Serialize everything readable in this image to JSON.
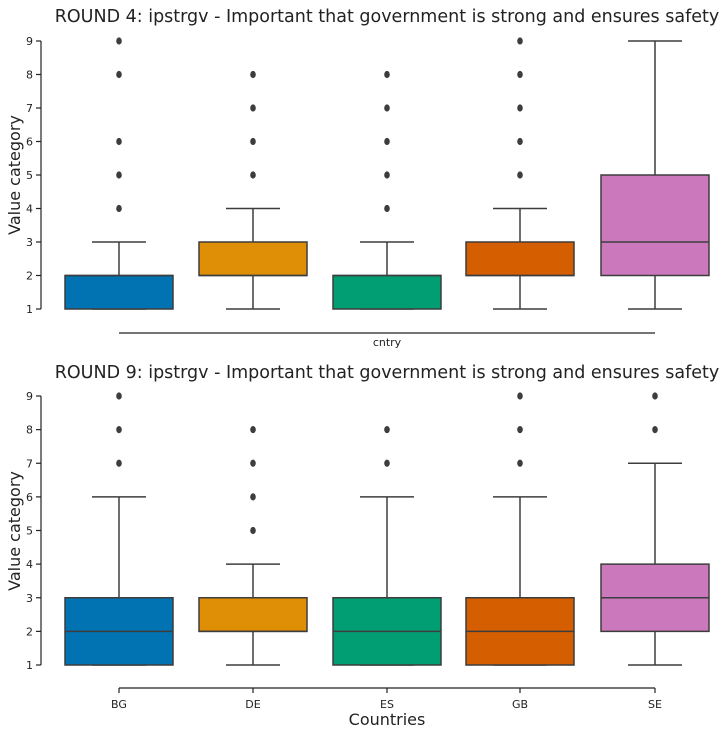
{
  "chart_data": [
    {
      "type": "box",
      "title": "ROUND 4: ipstrgv - Important that government is strong and ensures safety",
      "xlabel": "cntry",
      "ylabel": "Value category",
      "categories": [
        "BG",
        "DE",
        "ES",
        "GB",
        "SE"
      ],
      "x_tick_labels_shown": false,
      "ylim": [
        1,
        9
      ],
      "yticks": [
        1,
        2,
        3,
        4,
        5,
        6,
        7,
        8,
        9
      ],
      "grid": false,
      "colors": [
        "#0173b2",
        "#de8f05",
        "#029e73",
        "#d55e00",
        "#cc78bc"
      ],
      "boxes": [
        {
          "category": "BG",
          "whisker_low": 1,
          "q1": 1,
          "median": 2,
          "q3": 2,
          "whisker_high": 3,
          "outliers": [
            4,
            5,
            6,
            8,
            9
          ]
        },
        {
          "category": "DE",
          "whisker_low": 1,
          "q1": 2,
          "median": 2,
          "q3": 3,
          "whisker_high": 4,
          "outliers": [
            5,
            6,
            7,
            8
          ]
        },
        {
          "category": "ES",
          "whisker_low": 1,
          "q1": 1,
          "median": 2,
          "q3": 2,
          "whisker_high": 3,
          "outliers": [
            4,
            5,
            6,
            7,
            8
          ]
        },
        {
          "category": "GB",
          "whisker_low": 1,
          "q1": 2,
          "median": 2,
          "q3": 3,
          "whisker_high": 4,
          "outliers": [
            5,
            6,
            7,
            8,
            9
          ]
        },
        {
          "category": "SE",
          "whisker_low": 1,
          "q1": 2,
          "median": 3,
          "q3": 5,
          "whisker_high": 9,
          "outliers": []
        }
      ]
    },
    {
      "type": "box",
      "title": "ROUND 9: ipstrgv - Important that government is strong and ensures safety",
      "xlabel": "Countries",
      "ylabel": "Value category",
      "categories": [
        "BG",
        "DE",
        "ES",
        "GB",
        "SE"
      ],
      "x_tick_labels_shown": true,
      "ylim": [
        1,
        9
      ],
      "yticks": [
        1,
        2,
        3,
        4,
        5,
        6,
        7,
        8,
        9
      ],
      "grid": false,
      "colors": [
        "#0173b2",
        "#de8f05",
        "#029e73",
        "#d55e00",
        "#cc78bc"
      ],
      "boxes": [
        {
          "category": "BG",
          "whisker_low": 1,
          "q1": 1,
          "median": 2,
          "q3": 3,
          "whisker_high": 6,
          "outliers": [
            7,
            8,
            9
          ]
        },
        {
          "category": "DE",
          "whisker_low": 1,
          "q1": 2,
          "median": 2,
          "q3": 3,
          "whisker_high": 4,
          "outliers": [
            5,
            6,
            7,
            8
          ]
        },
        {
          "category": "ES",
          "whisker_low": 1,
          "q1": 1,
          "median": 2,
          "q3": 3,
          "whisker_high": 6,
          "outliers": [
            7,
            8
          ]
        },
        {
          "category": "GB",
          "whisker_low": 1,
          "q1": 1,
          "median": 2,
          "q3": 3,
          "whisker_high": 6,
          "outliers": [
            7,
            8,
            9
          ]
        },
        {
          "category": "SE",
          "whisker_low": 1,
          "q1": 2,
          "median": 3,
          "q3": 4,
          "whisker_high": 7,
          "outliers": [
            8,
            9
          ]
        }
      ]
    }
  ]
}
